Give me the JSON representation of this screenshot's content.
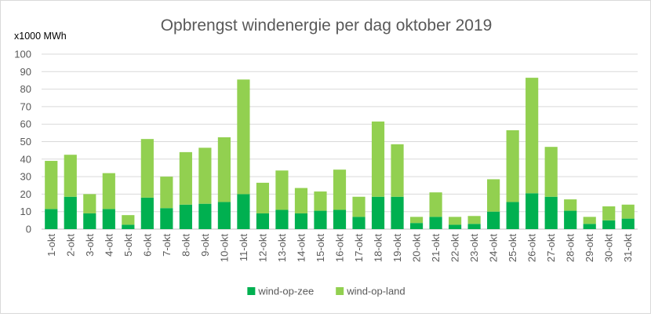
{
  "chart_data": {
    "type": "bar",
    "stacked": true,
    "title": "Opbrengst windenergie per dag oktober 2019",
    "unit_label": "x1000 MWh",
    "xlabel": "",
    "ylabel": "",
    "ylim": [
      0,
      100
    ],
    "yticks": [
      0,
      10,
      20,
      30,
      40,
      50,
      60,
      70,
      80,
      90,
      100
    ],
    "grid": true,
    "legend_position": "bottom",
    "categories": [
      "1-okt",
      "2-okt",
      "3-okt",
      "4-okt",
      "5-okt",
      "6-okt",
      "7-okt",
      "8-okt",
      "9-okt",
      "10-okt",
      "11-okt",
      "12-okt",
      "13-okt",
      "14-okt",
      "15-okt",
      "16-okt",
      "17-okt",
      "18-okt",
      "19-okt",
      "20-okt",
      "21-okt",
      "22-okt",
      "23-okt",
      "24-okt",
      "25-okt",
      "26-okt",
      "27-okt",
      "28-okt",
      "29-okt",
      "30-okt",
      "31-okt"
    ],
    "series": [
      {
        "name": "wind-op-zee",
        "color": "#00b050",
        "values": [
          11.5,
          18.5,
          9,
          11.5,
          2.5,
          18,
          12,
          14,
          14.5,
          15.5,
          20,
          9,
          11,
          9,
          10.5,
          11,
          7,
          18.5,
          18.5,
          3.5,
          7,
          2.5,
          3,
          10,
          15.5,
          20.5,
          18.5,
          10.5,
          3,
          5,
          6
        ]
      },
      {
        "name": "wind-op-land",
        "color": "#92d050",
        "values": [
          27.5,
          24,
          11,
          20.5,
          5.5,
          33.5,
          18,
          30,
          32,
          37,
          65.5,
          17.5,
          22.5,
          14.5,
          11,
          23,
          11.5,
          43,
          30,
          3.5,
          14,
          4.5,
          4.5,
          18.5,
          41,
          66,
          28.5,
          6.5,
          4,
          8,
          8
        ]
      }
    ]
  }
}
